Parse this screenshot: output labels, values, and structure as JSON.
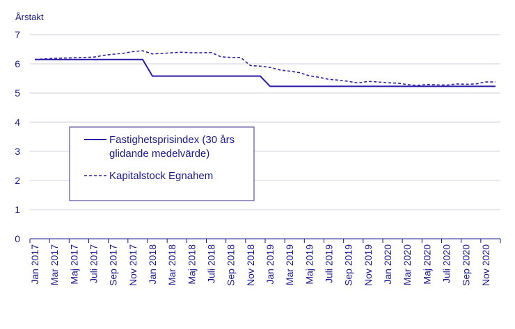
{
  "colors": {
    "series": "#2a1aa8",
    "text": "#1a1a8c",
    "grid": "#cfcfe0",
    "axis": "#1a1a8c",
    "legend_border": "#3a2a8a"
  },
  "chart_data": {
    "type": "line",
    "title": "",
    "xlabel": "",
    "ylabel": "Årstakt",
    "ylim": [
      0,
      7
    ],
    "yticks": [
      0,
      1,
      2,
      3,
      4,
      5,
      6,
      7
    ],
    "grid": true,
    "legend_position": "center-left",
    "x": [
      "Jan 2017",
      "Feb 2017",
      "Mar 2017",
      "Apr 2017",
      "Maj 2017",
      "Jun 2017",
      "Juli 2017",
      "Aug 2017",
      "Sep 2017",
      "Okt 2017",
      "Nov 2017",
      "Dec 2017",
      "Jan 2018",
      "Feb 2018",
      "Mar 2018",
      "Apr 2018",
      "Maj 2018",
      "Jun 2018",
      "Juli 2018",
      "Aug 2018",
      "Sep 2018",
      "Okt 2018",
      "Nov 2018",
      "Dec 2018",
      "Jan 2019",
      "Feb 2019",
      "Mar 2019",
      "Apr 2019",
      "Maj 2019",
      "Jun 2019",
      "Juli 2019",
      "Aug 2019",
      "Sep 2019",
      "Okt 2019",
      "Nov 2019",
      "Dec 2019",
      "Jan 2020",
      "Feb 2020",
      "Mar 2020",
      "Apr 2020",
      "Maj 2020",
      "Jun 2020",
      "Juli 2020",
      "Aug 2020",
      "Sep 2020",
      "Okt 2020",
      "Nov 2020",
      "Dec 2020"
    ],
    "tick_labels": [
      "Jan 2017",
      "Mar 2017",
      "Maj 2017",
      "Juli 2017",
      "Sep 2017",
      "Nov 2017",
      "Jan 2018",
      "Mar 2018",
      "Maj 2018",
      "Juli 2018",
      "Sep 2018",
      "Nov 2018",
      "Jan 2019",
      "Mar 2019",
      "Maj 2019",
      "Juli 2019",
      "Sep 2019",
      "Nov 2019",
      "Jan 2020",
      "Mar 2020",
      "Maj 2020",
      "Juli 2020",
      "Sep 2020",
      "Nov 2020"
    ],
    "series": [
      {
        "name": "Fastighetsprisindex (30 års glidande medelvärde)",
        "style": "solid",
        "values": [
          6.15,
          6.15,
          6.15,
          6.15,
          6.15,
          6.15,
          6.15,
          6.15,
          6.15,
          6.15,
          6.15,
          6.15,
          5.58,
          5.58,
          5.58,
          5.58,
          5.58,
          5.58,
          5.58,
          5.58,
          5.58,
          5.58,
          5.58,
          5.58,
          5.23,
          5.23,
          5.23,
          5.23,
          5.23,
          5.23,
          5.23,
          5.23,
          5.23,
          5.23,
          5.23,
          5.23,
          5.23,
          5.23,
          5.23,
          5.23,
          5.23,
          5.23,
          5.23,
          5.23,
          5.23,
          5.23,
          5.23,
          5.23
        ]
      },
      {
        "name": "Kapitalstock Egnahem",
        "style": "dashed",
        "values": [
          6.15,
          6.17,
          6.19,
          6.2,
          6.21,
          6.22,
          6.23,
          6.29,
          6.33,
          6.36,
          6.42,
          6.45,
          6.34,
          6.36,
          6.38,
          6.4,
          6.38,
          6.38,
          6.39,
          6.24,
          6.22,
          6.22,
          5.94,
          5.92,
          5.88,
          5.79,
          5.75,
          5.7,
          5.59,
          5.54,
          5.47,
          5.44,
          5.4,
          5.34,
          5.4,
          5.38,
          5.35,
          5.34,
          5.29,
          5.26,
          5.29,
          5.28,
          5.27,
          5.31,
          5.3,
          5.31,
          5.38,
          5.38
        ]
      }
    ],
    "legend": {
      "entry1_line1": "Fastighetsprisindex (30 års",
      "entry1_line2": "glidande medelvärde)",
      "entry2": "Kapitalstock Egnahem"
    }
  }
}
